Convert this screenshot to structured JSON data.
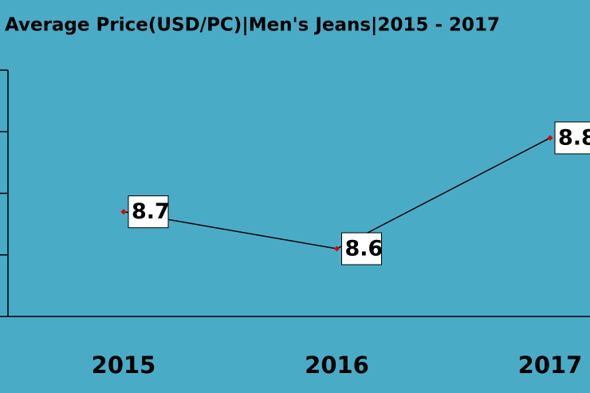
{
  "chart_data": {
    "type": "line",
    "title": "Average Price(USD/PC)|Men's Jeans|2015 - 2017",
    "categories": [
      "2015",
      "2016",
      "2017"
    ],
    "values": [
      8.67,
      8.61,
      8.79
    ],
    "value_labels": [
      "8.7",
      "8.6",
      "8.8"
    ],
    "color": "#000000",
    "marker_color": "#e00000",
    "ylim": [
      8.5,
      8.9
    ],
    "yticks": [
      8.5,
      8.6,
      8.7,
      8.8,
      8.9
    ]
  }
}
